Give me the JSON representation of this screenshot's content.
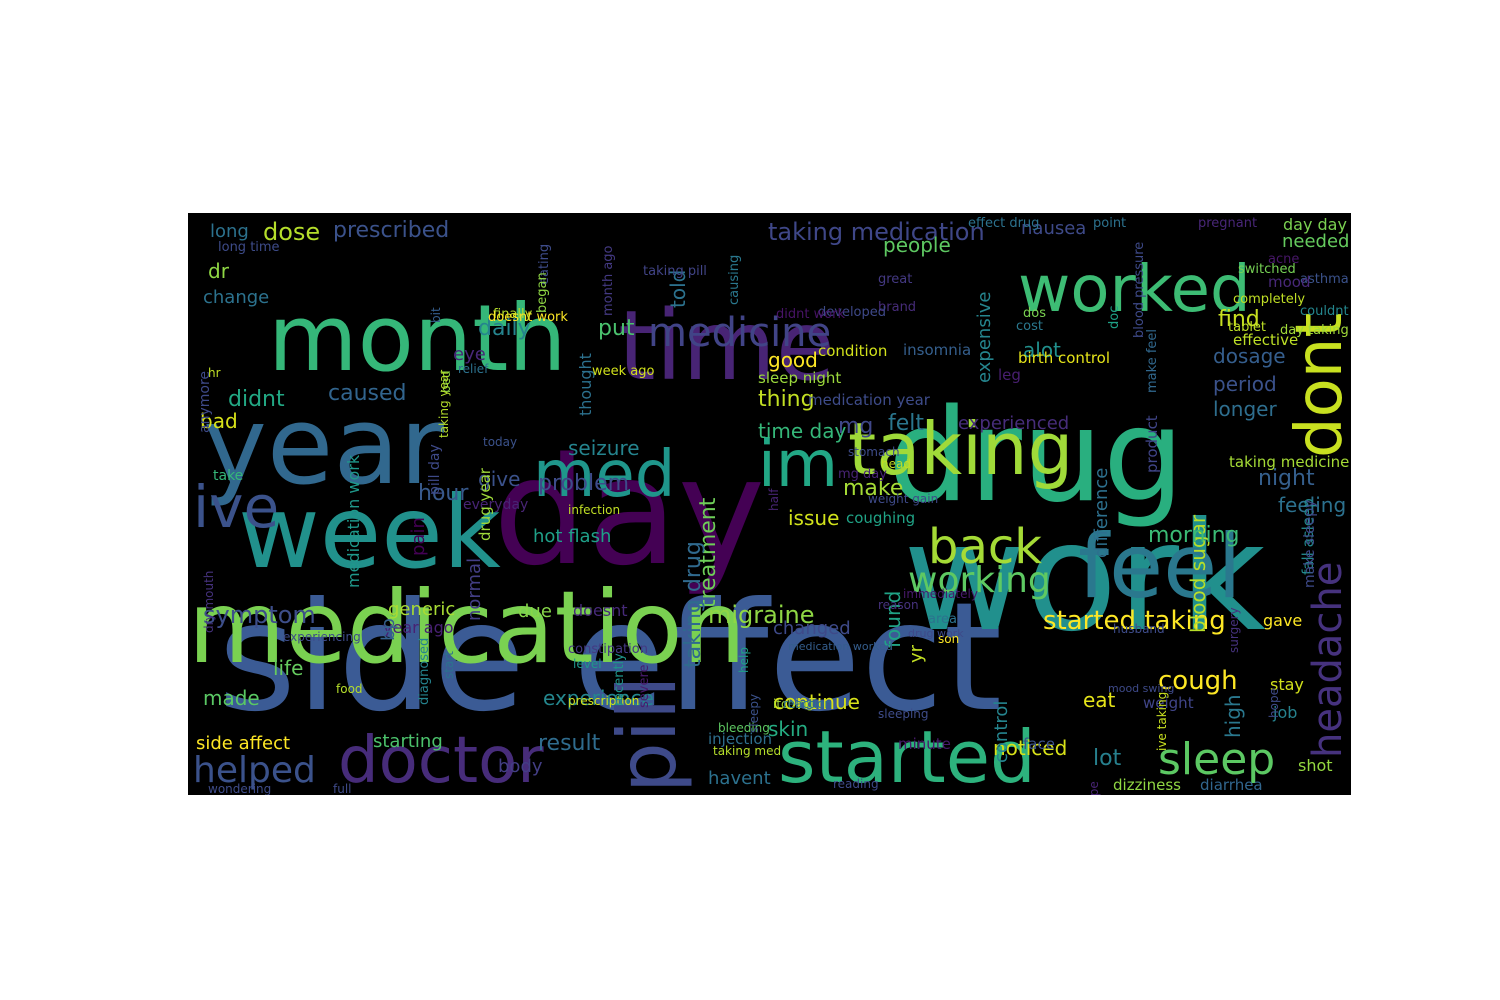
{
  "palette": {
    "purple": "#440154",
    "indigo": "#482878",
    "violet": "#3e4989",
    "blue": "#31688e",
    "steel": "#26828e",
    "teal": "#1f9e89",
    "green": "#35b779",
    "lime": "#6ece58",
    "chartreuse": "#b5de2b",
    "yellow": "#fde725"
  },
  "words": [
    {
      "t": "side effect",
      "c": "#3b5b95"
    },
    {
      "t": "day",
      "c": "#440154"
    },
    {
      "t": "work",
      "c": "#21908d"
    },
    {
      "t": "medication",
      "c": "#7ad151"
    },
    {
      "t": "drug",
      "c": "#29af7f"
    },
    {
      "t": "month",
      "c": "#35b779"
    },
    {
      "t": "time",
      "c": "#482475"
    },
    {
      "t": "year",
      "c": "#31688e"
    },
    {
      "t": "week",
      "c": "#21918c"
    },
    {
      "t": "worked",
      "c": "#3dbc74"
    },
    {
      "t": "taking",
      "c": "#a0da39"
    },
    {
      "t": "dont",
      "c": "#c8e020"
    },
    {
      "t": "feel",
      "c": "#2a788e"
    },
    {
      "t": "started",
      "c": "#2db27d"
    },
    {
      "t": "doctor",
      "c": "#472c7a"
    },
    {
      "t": "pill",
      "c": "#3e4a89"
    },
    {
      "t": "im",
      "c": "#22a785"
    },
    {
      "t": "med",
      "c": "#1f968b"
    },
    {
      "t": "medicine",
      "c": "#414487"
    },
    {
      "t": "ive",
      "c": "#3b528b"
    },
    {
      "t": "back",
      "c": "#a5db36"
    },
    {
      "t": "headache",
      "c": "#46327e"
    },
    {
      "t": "working",
      "c": "#5ec962"
    },
    {
      "t": "sleep",
      "c": "#5cc863"
    },
    {
      "t": "helped",
      "c": "#3b528b"
    },
    {
      "t": "taking medication",
      "c": "#3f4788"
    },
    {
      "t": "dose",
      "c": "#b5de2b"
    },
    {
      "t": "prescribed",
      "c": "#3b528b"
    },
    {
      "t": "told",
      "c": "#2c728e"
    },
    {
      "t": "started taking",
      "c": "#fde725"
    },
    {
      "t": "cough",
      "c": "#fde725"
    },
    {
      "t": "symptom",
      "c": "#3d4e8a"
    },
    {
      "t": "migraine",
      "c": "#8fd744"
    },
    {
      "t": "treatment",
      "c": "#6ece58"
    },
    {
      "t": "taking drug",
      "c": "#306a8e"
    },
    {
      "t": "result",
      "c": "#2f6c8e"
    },
    {
      "t": "lot",
      "c": "#27808e"
    },
    {
      "t": "blood sugar",
      "c": "#b8de29"
    },
    {
      "t": "morning",
      "c": "#3bbb75"
    },
    {
      "t": "night",
      "c": "#355f8d"
    },
    {
      "t": "feeling",
      "c": "#2c718e"
    },
    {
      "t": "seizure",
      "c": "#25848e"
    },
    {
      "t": "problem",
      "c": "#3e4c8a"
    },
    {
      "t": "hour",
      "c": "#38598c"
    },
    {
      "t": "caused",
      "c": "#32658e"
    },
    {
      "t": "didnt",
      "c": "#22a884"
    },
    {
      "t": "daily",
      "c": "#25848e"
    },
    {
      "t": "put",
      "c": "#4ac16d"
    },
    {
      "t": "good",
      "c": "#fde725"
    },
    {
      "t": "found",
      "c": "#20a386"
    },
    {
      "t": "felt",
      "c": "#2a768e"
    },
    {
      "t": "thing",
      "c": "#c2df23"
    },
    {
      "t": "mg",
      "c": "#3f4788"
    },
    {
      "t": "time day",
      "c": "#35b779"
    },
    {
      "t": "make",
      "c": "#a5db36"
    },
    {
      "t": "issue",
      "c": "#d2e21b"
    },
    {
      "t": "give",
      "c": "#3b528b"
    },
    {
      "t": "experienced",
      "c": "#472d7b"
    },
    {
      "t": "difference",
      "c": "#2d708e"
    },
    {
      "t": "expensive",
      "c": "#25858e"
    },
    {
      "t": "alot",
      "c": "#21908d"
    },
    {
      "t": "find",
      "c": "#c8e020"
    },
    {
      "t": "dosage",
      "c": "#355e8d"
    },
    {
      "t": "period",
      "c": "#3b528b"
    },
    {
      "t": "longer",
      "c": "#2e6e8e"
    },
    {
      "t": "people",
      "c": "#5ec962"
    },
    {
      "t": "needed",
      "c": "#65cb5e"
    },
    {
      "t": "day day",
      "c": "#7ad151"
    },
    {
      "t": "nausea",
      "c": "#3e4a89"
    },
    {
      "t": "eye",
      "c": "#482878"
    },
    {
      "t": "dr",
      "c": "#8fd744"
    },
    {
      "t": "change",
      "c": "#2c728e"
    },
    {
      "t": "long",
      "c": "#2c728e"
    },
    {
      "t": "bad",
      "c": "#d8e219"
    },
    {
      "t": "pain",
      "c": "#440154"
    },
    {
      "t": "generic",
      "c": "#a8db34"
    },
    {
      "t": "due",
      "c": "#86d549"
    },
    {
      "t": "doesnt",
      "c": "#472a7a"
    },
    {
      "t": "normal",
      "c": "#433e85"
    },
    {
      "t": "year ago",
      "c": "#482173"
    },
    {
      "t": "bp",
      "c": "#34618d"
    },
    {
      "t": "life",
      "c": "#65cb5e"
    },
    {
      "t": "made",
      "c": "#5ac864"
    },
    {
      "t": "side affect",
      "c": "#fde725"
    },
    {
      "t": "experience",
      "c": "#24878e"
    },
    {
      "t": "starting",
      "c": "#4cc26c"
    },
    {
      "t": "continue",
      "c": "#d8e219"
    },
    {
      "t": "skin",
      "c": "#25ac82"
    },
    {
      "t": "body",
      "c": "#433e85"
    },
    {
      "t": "havent",
      "c": "#2c718e"
    },
    {
      "t": "noticed",
      "c": "#d8e219"
    },
    {
      "t": "eat",
      "c": "#e5e419"
    },
    {
      "t": "hot flash",
      "c": "#1fa088"
    },
    {
      "t": "high",
      "c": "#2a788e"
    },
    {
      "t": "control",
      "c": "#25848e"
    },
    {
      "t": "yr",
      "c": "#c2df23"
    },
    {
      "t": "changed",
      "c": "#3e4a89"
    },
    {
      "t": "coughing",
      "c": "#20a386"
    },
    {
      "t": "medication work",
      "c": "#1f988b"
    },
    {
      "t": "gave",
      "c": "#fde725"
    },
    {
      "t": "stay",
      "c": "#d2e21b"
    },
    {
      "t": "job",
      "c": "#26828e"
    },
    {
      "t": "shot",
      "c": "#95d840"
    },
    {
      "t": "weight",
      "c": "#404588"
    },
    {
      "t": "injection",
      "c": "#2e6f8e"
    },
    {
      "t": "dizziness",
      "c": "#90d743"
    },
    {
      "t": "diarrhea",
      "c": "#31668e"
    },
    {
      "t": "minute",
      "c": "#481a6c"
    },
    {
      "t": "face",
      "c": "#3b528b"
    },
    {
      "t": "condition",
      "c": "#d2e21b"
    },
    {
      "t": "insomnia",
      "c": "#355f8d"
    },
    {
      "t": "leg",
      "c": "#481f70"
    },
    {
      "t": "birth control",
      "c": "#e5e419"
    },
    {
      "t": "effective",
      "c": "#bddf26"
    },
    {
      "t": "sleep night",
      "c": "#9bd93c"
    },
    {
      "t": "medication year",
      "c": "#3e4c8a"
    },
    {
      "t": "taking medicine",
      "c": "#a5db36"
    },
    {
      "t": "product",
      "c": "#404588"
    },
    {
      "t": "fall asleep",
      "c": "#238a8d"
    },
    {
      "t": "make sleepy",
      "c": "#3e4a89"
    },
    {
      "t": "day taking",
      "c": "#a0da39"
    },
    {
      "t": "couldnt",
      "c": "#24878e"
    },
    {
      "t": "asthma",
      "c": "#3b528b"
    },
    {
      "t": "acne",
      "c": "#481769"
    },
    {
      "t": "mood",
      "c": "#482878"
    },
    {
      "t": "completely",
      "c": "#c0df25"
    },
    {
      "t": "tablet",
      "c": "#bddf26"
    },
    {
      "t": "switched",
      "c": "#75d054"
    },
    {
      "t": "dos",
      "c": "#7ad151"
    },
    {
      "t": "cost",
      "c": "#2a788e"
    },
    {
      "t": "doc",
      "c": "#1fa187"
    },
    {
      "t": "make feel",
      "c": "#31688e"
    },
    {
      "t": "blood pressure",
      "c": "#3e4a89"
    },
    {
      "t": "point",
      "c": "#2c728e"
    },
    {
      "t": "pregnant",
      "c": "#482677"
    },
    {
      "t": "effect drug",
      "c": "#2c728e"
    },
    {
      "t": "great",
      "c": "#443983"
    },
    {
      "t": "brand",
      "c": "#472c7a"
    },
    {
      "t": "developed",
      "c": "#3e4989"
    },
    {
      "t": "didnt work",
      "c": "#481467"
    },
    {
      "t": "causing",
      "c": "#2a788e"
    },
    {
      "t": "month ago",
      "c": "#443a83"
    },
    {
      "t": "taking pill",
      "c": "#414487"
    },
    {
      "t": "eating",
      "c": "#3e4c8a"
    },
    {
      "t": "finally",
      "c": "#b5de2b"
    },
    {
      "t": "began",
      "c": "#8fd744"
    },
    {
      "t": "long time",
      "c": "#3e4c8a"
    },
    {
      "t": "doesnt work",
      "c": "#fde725"
    },
    {
      "t": "bit",
      "c": "#355e8d"
    },
    {
      "t": "relief",
      "c": "#2c728e"
    },
    {
      "t": "week ago",
      "c": "#d2e21b"
    },
    {
      "t": "thought",
      "c": "#2c718e"
    },
    {
      "t": "bed",
      "c": "#90d743"
    },
    {
      "t": "anymore",
      "c": "#3e4a89"
    },
    {
      "t": "hr",
      "c": "#c0df25"
    },
    {
      "t": "taking year",
      "c": "#b5de2b"
    },
    {
      "t": "take",
      "c": "#35b779"
    },
    {
      "t": "today",
      "c": "#3b528b"
    },
    {
      "t": "everyday",
      "c": "#482475"
    },
    {
      "t": "infection",
      "c": "#c0df25"
    },
    {
      "t": "pill day",
      "c": "#3e4a89"
    },
    {
      "t": "drug year",
      "c": "#9fda3a"
    },
    {
      "t": "dry mouth",
      "c": "#46327e"
    },
    {
      "t": "experiencing",
      "c": "#3e4c8a"
    },
    {
      "t": "start",
      "c": "#2c728e"
    },
    {
      "t": "food",
      "c": "#b5de2b"
    },
    {
      "t": "diagnosed",
      "c": "#25838e"
    },
    {
      "t": "wondering",
      "c": "#3e4c8a"
    },
    {
      "t": "full",
      "c": "#3e4a89"
    },
    {
      "t": "constipation",
      "c": "#443983"
    },
    {
      "t": "level",
      "c": "#1f968b"
    },
    {
      "t": "prescription",
      "c": "#d2e21b"
    },
    {
      "t": "recently",
      "c": "#1f968b"
    },
    {
      "t": "severe",
      "c": "#481b6d"
    },
    {
      "t": "bleeding",
      "c": "#5ec962"
    },
    {
      "t": "sleepy",
      "c": "#3b528b"
    },
    {
      "t": "taking med",
      "c": "#b5de2b"
    },
    {
      "t": "mg day",
      "c": "#482475"
    },
    {
      "t": "weight gain",
      "c": "#3e4a89"
    },
    {
      "t": "sleeping",
      "c": "#3e4c8a"
    },
    {
      "t": "help",
      "c": "#1fa187"
    },
    {
      "t": "itching",
      "c": "#a5db36"
    },
    {
      "t": "half",
      "c": "#482475"
    },
    {
      "t": "reason",
      "c": "#46327e"
    },
    {
      "t": "stomach",
      "c": "#3e4c8a"
    },
    {
      "t": "immediately",
      "c": "#481a6c"
    },
    {
      "t": "head",
      "c": "#c0df25"
    },
    {
      "t": "medication worked",
      "c": "#355e8d"
    },
    {
      "t": "area",
      "c": "#2c728e"
    },
    {
      "t": "reaction",
      "c": "#2c728e"
    },
    {
      "t": "husband",
      "c": "#3e4c8a"
    },
    {
      "t": "hope",
      "c": "#3e4a89"
    },
    {
      "t": "surgery",
      "c": "#46327e"
    },
    {
      "t": "type",
      "c": "#482475"
    },
    {
      "t": "son",
      "c": "#fde725"
    },
    {
      "t": "mood swing",
      "c": "#3e4a89"
    },
    {
      "t": "ive taking",
      "c": "#c8e020"
    },
    {
      "t": "drug work",
      "c": "#3e4a89"
    },
    {
      "t": "reading",
      "c": "#3e4a89"
    }
  ]
}
